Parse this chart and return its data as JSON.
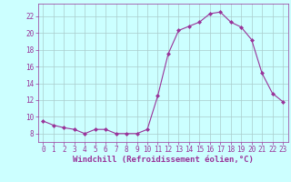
{
  "hours": [
    0,
    1,
    2,
    3,
    4,
    5,
    6,
    7,
    8,
    9,
    10,
    11,
    12,
    13,
    14,
    15,
    16,
    17,
    18,
    19,
    20,
    21,
    22,
    23
  ],
  "values": [
    9.5,
    9.0,
    8.7,
    8.5,
    8.0,
    8.5,
    8.5,
    8.0,
    8.0,
    8.0,
    8.5,
    12.5,
    17.5,
    20.3,
    20.8,
    21.3,
    22.3,
    22.5,
    21.3,
    20.7,
    19.2,
    15.2,
    12.8,
    11.8
  ],
  "line_color": "#993399",
  "marker": "D",
  "marker_size": 2.0,
  "bg_color": "#ccffff",
  "grid_color": "#aacccc",
  "xlabel": "Windchill (Refroidissement éolien,°C)",
  "xlabel_color": "#993399",
  "tick_color": "#993399",
  "ylim": [
    7,
    23.5
  ],
  "yticks": [
    8,
    10,
    12,
    14,
    16,
    18,
    20,
    22
  ],
  "xlim": [
    -0.5,
    23.5
  ],
  "xticks": [
    0,
    1,
    2,
    3,
    4,
    5,
    6,
    7,
    8,
    9,
    10,
    11,
    12,
    13,
    14,
    15,
    16,
    17,
    18,
    19,
    20,
    21,
    22,
    23
  ],
  "tick_fontsize": 5.5,
  "xlabel_fontsize": 6.5
}
